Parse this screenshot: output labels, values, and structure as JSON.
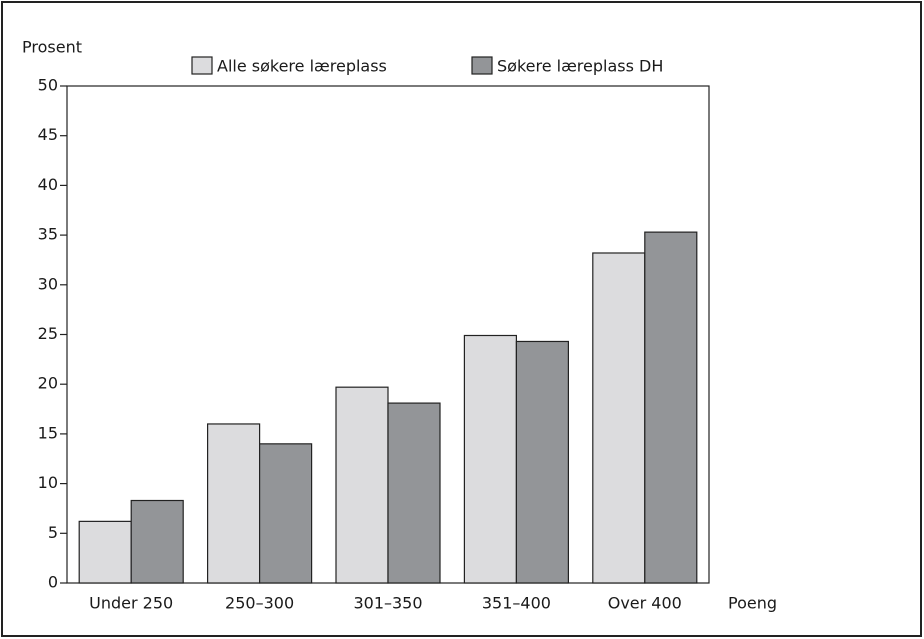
{
  "chart_data": {
    "type": "bar",
    "y_label": "Prosent",
    "x_label": "Poeng",
    "categories": [
      "Under 250",
      "250–300",
      "301–350",
      "351–400",
      "Over 400"
    ],
    "series": [
      {
        "name": "Alle søkere læreplass",
        "color": "#dcdcde",
        "values": [
          6.2,
          16.0,
          19.7,
          24.9,
          33.2
        ]
      },
      {
        "name": "Søkere læreplass DH",
        "color": "#939598",
        "values": [
          8.3,
          14.0,
          18.1,
          24.3,
          35.3
        ]
      }
    ],
    "ylim": [
      0,
      50
    ],
    "yticks": [
      0,
      5,
      10,
      15,
      20,
      25,
      30,
      35,
      40,
      45,
      50
    ],
    "grid": false
  }
}
